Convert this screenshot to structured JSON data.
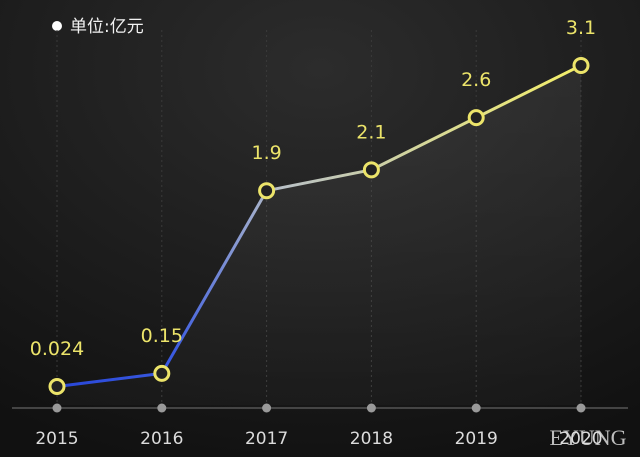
{
  "chart_data": {
    "type": "line",
    "legend_label": "单位:亿元",
    "categories": [
      "2015",
      "2016",
      "2017",
      "2018",
      "2019",
      "2020"
    ],
    "values": [
      0.024,
      0.15,
      1.9,
      2.1,
      2.6,
      3.1
    ],
    "color": "#ece46a",
    "ylim": [
      0,
      3.2
    ],
    "grid": true,
    "watermark": "EYUNG"
  }
}
